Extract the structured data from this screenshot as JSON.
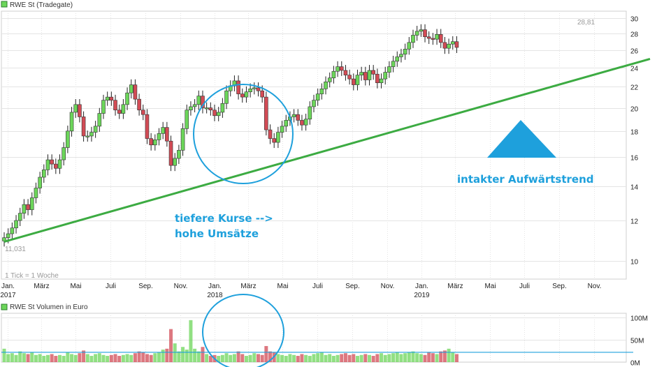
{
  "chart_data": [
    {
      "type": "candlestick",
      "title": "RWE St (Tradegate)",
      "y_scale": "log",
      "ylim": [
        9.2,
        31
      ],
      "y_ticks": [
        10,
        12,
        14,
        16,
        18,
        20,
        22,
        24,
        26,
        28,
        30
      ],
      "x_range": [
        "2016-12-26",
        "2019-12-23"
      ],
      "x_ticks": [
        {
          "label": "Jan.",
          "sub": "2017",
          "date": "2017-01-01"
        },
        {
          "label": "März",
          "date": "2017-03-01"
        },
        {
          "label": "Mai",
          "date": "2017-05-01"
        },
        {
          "label": "Juli",
          "date": "2017-07-01"
        },
        {
          "label": "Sep.",
          "date": "2017-09-01"
        },
        {
          "label": "Nov.",
          "date": "2017-11-01"
        },
        {
          "label": "Jan.",
          "sub": "2018",
          "date": "2018-01-01"
        },
        {
          "label": "März",
          "date": "2018-03-01"
        },
        {
          "label": "Mai",
          "date": "2018-05-01"
        },
        {
          "label": "Juli",
          "date": "2018-07-01"
        },
        {
          "label": "Sep.",
          "date": "2018-09-01"
        },
        {
          "label": "Nov.",
          "date": "2018-11-01"
        },
        {
          "label": "Jan.",
          "sub": "2019",
          "date": "2019-01-01"
        },
        {
          "label": "März",
          "date": "2019-03-01"
        },
        {
          "label": "Mai",
          "date": "2019-05-01"
        },
        {
          "label": "Juli",
          "date": "2019-07-01"
        },
        {
          "label": "Sep.",
          "date": "2019-09-01"
        },
        {
          "label": "Nov.",
          "date": "2019-11-01"
        }
      ],
      "grid": true,
      "start_week": "2016-12-26",
      "weekly_close": [
        11.1,
        11.3,
        11.6,
        12.0,
        12.4,
        12.9,
        12.6,
        13.3,
        13.9,
        14.6,
        15.1,
        15.8,
        15.5,
        15.2,
        15.8,
        16.7,
        18.0,
        19.6,
        20.3,
        19.2,
        17.6,
        17.6,
        17.9,
        18.4,
        19.5,
        20.7,
        21.0,
        20.7,
        19.8,
        19.5,
        20.3,
        21.4,
        22.2,
        20.8,
        19.8,
        19.4,
        17.4,
        16.9,
        17.3,
        17.8,
        18.3,
        17.2,
        15.4,
        15.9,
        16.5,
        18.2,
        19.8,
        20.1,
        20.3,
        21.1,
        20.0,
        20.0,
        19.8,
        19.3,
        19.6,
        20.4,
        21.6,
        22.1,
        22.6,
        21.3,
        21.0,
        21.5,
        21.8,
        21.9,
        21.6,
        21.0,
        18.1,
        17.4,
        17.1,
        17.9,
        18.4,
        18.9,
        19.2,
        19.4,
        18.9,
        18.5,
        19.0,
        20.1,
        20.7,
        21.3,
        21.8,
        22.5,
        22.9,
        23.6,
        24.1,
        23.7,
        23.2,
        22.8,
        22.2,
        23.2,
        23.5,
        22.7,
        23.7,
        23.3,
        22.4,
        22.8,
        23.5,
        24.1,
        24.7,
        25.2,
        25.5,
        26.1,
        26.9,
        27.8,
        28.3,
        28.5,
        27.6,
        27.4,
        27.3,
        27.9,
        26.9,
        26.2,
        26.7,
        27.0,
        26.3
      ],
      "labels": {
        "high": "28,81",
        "low": "11,031",
        "note": "1 Tick = 1 Woche"
      },
      "trendline": {
        "from": {
          "date": "2016-12-26",
          "value": 10.9
        },
        "to": {
          "date": "2019-12-23",
          "value": 24.5
        },
        "color": "#3cab42"
      },
      "annotations": [
        {
          "text": "tiefere Kurse -->"
        },
        {
          "text": "hohe Umsätze"
        },
        {
          "text": "intakter Aufwärtstrend"
        }
      ],
      "colors": {
        "up": "#6cd65a",
        "down": "#d24b55",
        "wick": "#222222",
        "annotation": "#1ea0dc"
      }
    },
    {
      "type": "bar",
      "title": "RWE St Volumen in Euro",
      "ylim": [
        0,
        100
      ],
      "y_ticks": [
        {
          "value": 0,
          "label": "0M"
        },
        {
          "value": 50,
          "label": "50M"
        },
        {
          "value": 100,
          "label": "100M"
        }
      ],
      "reference_line": {
        "value": 22,
        "color": "#1ea0dc"
      },
      "weekly_volume_m": [
        30,
        18,
        20,
        16,
        24,
        20,
        18,
        22,
        16,
        18,
        14,
        16,
        18,
        14,
        16,
        14,
        22,
        18,
        16,
        20,
        26,
        18,
        14,
        18,
        20,
        16,
        14,
        16,
        18,
        14,
        16,
        18,
        16,
        20,
        24,
        22,
        18,
        16,
        20,
        22,
        28,
        30,
        74,
        42,
        24,
        34,
        28,
        94,
        30,
        24,
        34,
        18,
        14,
        16,
        14,
        16,
        20,
        16,
        18,
        24,
        18,
        14,
        16,
        20,
        18,
        16,
        36,
        24,
        22,
        18,
        16,
        14,
        18,
        16,
        14,
        18,
        16,
        14,
        18,
        20,
        22,
        16,
        18,
        14,
        16,
        18,
        20,
        16,
        18,
        14,
        16,
        18,
        16,
        14,
        18,
        20,
        16,
        18,
        20,
        22,
        18,
        20,
        22,
        24,
        20,
        18,
        16,
        22,
        20,
        18,
        24,
        26,
        30,
        22,
        18
      ]
    }
  ]
}
